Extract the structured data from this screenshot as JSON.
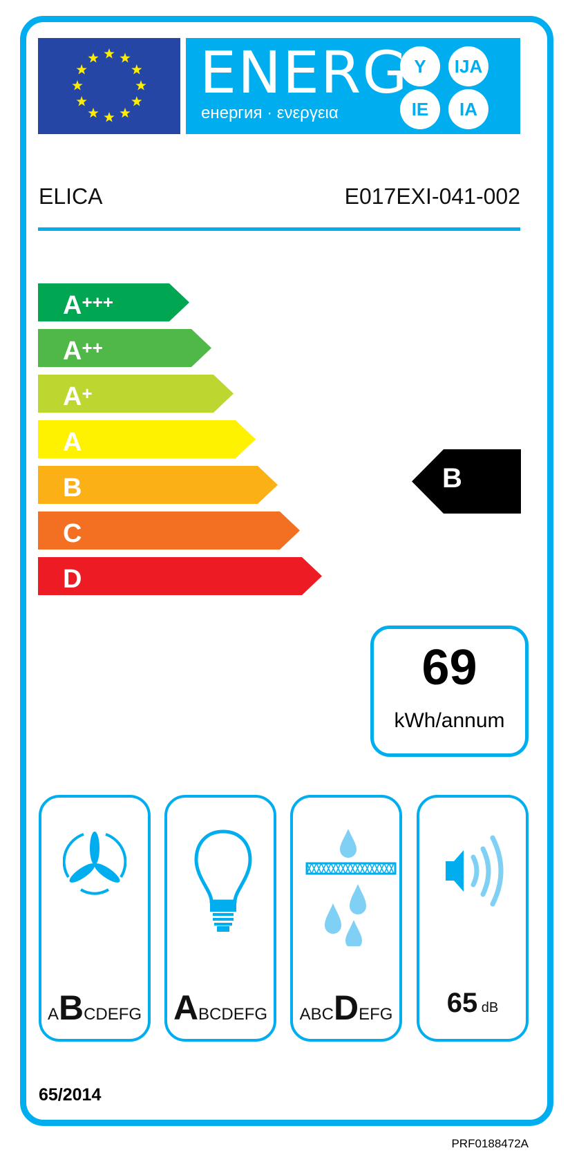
{
  "header": {
    "energy_title": "ENERG",
    "energy_subtitle": "енергия · ενεργεια",
    "suffixes": [
      "Y",
      "IJA",
      "IE",
      "IA"
    ]
  },
  "supplier": "ELICA",
  "model": "E017EXI-041-002",
  "scale": {
    "classes": [
      {
        "label": "A",
        "plus": "+++",
        "color": "#00a651"
      },
      {
        "label": "A",
        "plus": "++",
        "color": "#50b848"
      },
      {
        "label": "A",
        "plus": "+",
        "color": "#bed630"
      },
      {
        "label": "A",
        "plus": "",
        "color": "#fff200"
      },
      {
        "label": "B",
        "plus": "",
        "color": "#fbb116"
      },
      {
        "label": "C",
        "plus": "",
        "color": "#f36f21"
      },
      {
        "label": "D",
        "plus": "",
        "color": "#ed1c24"
      }
    ]
  },
  "rating": "B",
  "consumption": {
    "value": "69",
    "unit": "kWh/annum"
  },
  "pictograms": [
    {
      "icon": "fan-icon",
      "pre": "A",
      "class": "B",
      "post": "CDEFG"
    },
    {
      "icon": "light-bulb-icon",
      "pre": "",
      "class": "A",
      "post": "BCDEFG"
    },
    {
      "icon": "grease-filter-icon",
      "pre": "ABC",
      "class": "D",
      "post": "EFG"
    },
    {
      "icon": "speaker-icon",
      "value": "65",
      "unit": "dB"
    }
  ],
  "regulation": "65/2014",
  "code": "PRF0188472A",
  "colors": {
    "frame": "#00aeef",
    "flag": "#2546a4",
    "star": "#ffed00"
  }
}
